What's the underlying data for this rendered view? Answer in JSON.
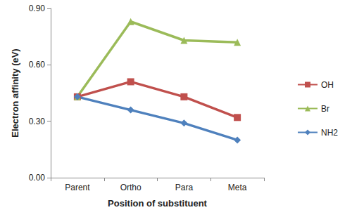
{
  "chart_data": {
    "type": "line",
    "x_label": "Position of substituent",
    "y_label": "Electron affinity (eV)",
    "categories": [
      "Parent",
      "Ortho",
      "Para",
      "Meta"
    ],
    "series": [
      {
        "name": "OH",
        "color": "#c0504d",
        "marker": "square",
        "values": [
          0.43,
          0.51,
          0.43,
          0.32
        ]
      },
      {
        "name": "Br",
        "color": "#9bbb59",
        "marker": "triangle",
        "values": [
          0.43,
          0.83,
          0.73,
          0.72
        ]
      },
      {
        "name": "NH2",
        "color": "#4f81bd",
        "marker": "diamond",
        "values": [
          0.43,
          0.36,
          0.29,
          0.2
        ]
      }
    ],
    "ylim": [
      0,
      0.9
    ],
    "yticks": [
      {
        "value": 0,
        "label": "0.00"
      },
      {
        "value": 0.3,
        "label": "0.30"
      },
      {
        "value": 0.6,
        "label": "0.60"
      },
      {
        "value": 0.9,
        "label": "0.90"
      }
    ],
    "grid": false,
    "legend": "right"
  }
}
